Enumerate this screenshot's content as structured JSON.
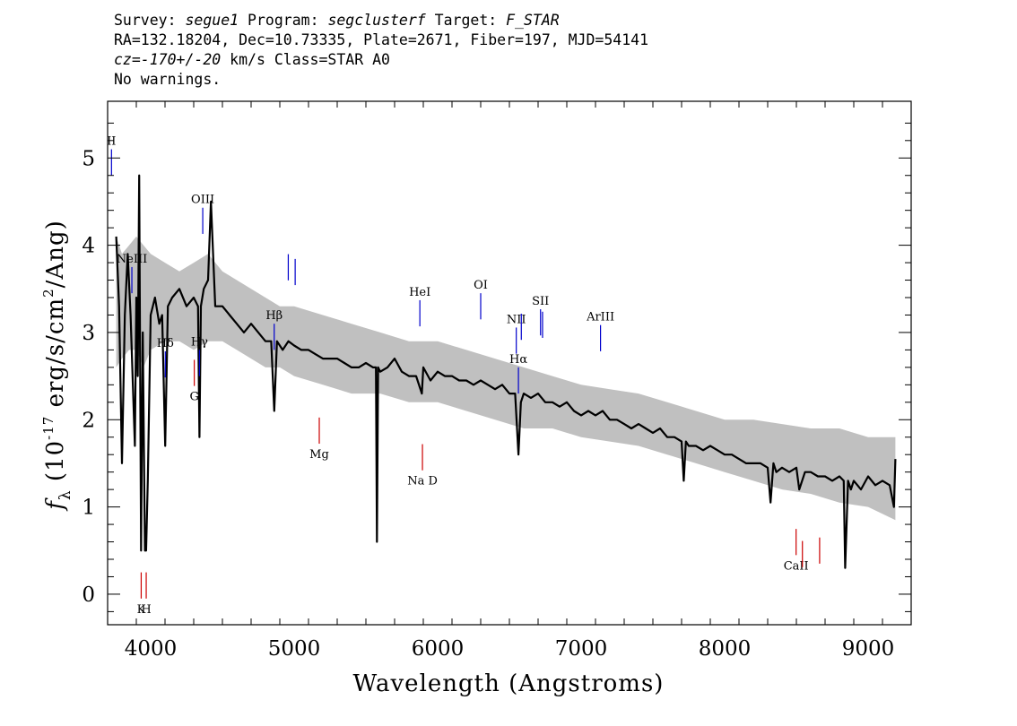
{
  "header": {
    "line1": [
      {
        "text": "Survey: ",
        "italic": false
      },
      {
        "text": "segue1",
        "italic": true
      },
      {
        "text": " Program: ",
        "italic": false
      },
      {
        "text": "segclusterf",
        "italic": true
      },
      {
        "text": " Target: ",
        "italic": false
      },
      {
        "text": "F_STAR",
        "italic": true
      }
    ],
    "line2": "RA=132.18204, Dec=10.73335, Plate=2671, Fiber=197, MJD=54141",
    "line3": [
      {
        "text": "cz=-170+/-20",
        "italic": true
      },
      {
        "text": " km/s Class=STAR A0",
        "italic": false
      }
    ],
    "line4": "No warnings."
  },
  "chart_data": {
    "type": "line",
    "xlabel": "Wavelength (Angstroms)",
    "ylabel_parts": [
      "f",
      "λ",
      " (10",
      "-17",
      " erg/s/cm",
      "2",
      "/Ang)"
    ],
    "xlim": [
      3700,
      9300
    ],
    "ylim": [
      -0.35,
      5.65
    ],
    "x_ticks": [
      4000,
      5000,
      6000,
      7000,
      8000,
      9000
    ],
    "y_ticks": [
      0,
      1,
      2,
      3,
      4,
      5
    ],
    "grid": false,
    "series": [
      {
        "role": "error-band",
        "color": "#c0c0c0",
        "x": [
          3760,
          3800,
          3850,
          3900,
          3950,
          4000,
          4100,
          4200,
          4300,
          4400,
          4500,
          4600,
          4700,
          4800,
          4900,
          5000,
          5200,
          5400,
          5600,
          5800,
          6000,
          6200,
          6400,
          6600,
          6800,
          7000,
          7200,
          7400,
          7600,
          7800,
          8000,
          8200,
          8400,
          8600,
          8800,
          9000,
          9190
        ],
        "lower": [
          2.6,
          2.7,
          2.8,
          2.8,
          2.6,
          2.8,
          2.9,
          2.9,
          2.8,
          2.9,
          2.9,
          2.8,
          2.7,
          2.6,
          2.6,
          2.5,
          2.4,
          2.3,
          2.3,
          2.2,
          2.2,
          2.1,
          2.0,
          1.9,
          1.9,
          1.8,
          1.75,
          1.7,
          1.6,
          1.5,
          1.4,
          1.3,
          1.2,
          1.15,
          1.05,
          1.0,
          0.85
        ],
        "upper": [
          4.1,
          3.9,
          4.0,
          4.1,
          4.0,
          3.9,
          3.8,
          3.7,
          3.8,
          3.9,
          3.7,
          3.6,
          3.5,
          3.4,
          3.3,
          3.3,
          3.2,
          3.1,
          3.0,
          2.9,
          2.9,
          2.8,
          2.7,
          2.6,
          2.5,
          2.4,
          2.35,
          2.3,
          2.2,
          2.1,
          2.0,
          2.0,
          1.95,
          1.9,
          1.9,
          1.8,
          1.8
        ]
      },
      {
        "role": "spectrum",
        "color": "#000000",
        "x": [
          3760,
          3780,
          3800,
          3820,
          3840,
          3860,
          3880,
          3890,
          3900,
          3910,
          3920,
          3933,
          3945,
          3960,
          3968,
          3980,
          4000,
          4030,
          4060,
          4080,
          4101,
          4120,
          4150,
          4200,
          4250,
          4300,
          4330,
          4340,
          4350,
          4370,
          4400,
          4420,
          4450,
          4500,
          4550,
          4600,
          4650,
          4700,
          4750,
          4800,
          4840,
          4861,
          4880,
          4920,
          4960,
          5000,
          5050,
          5100,
          5150,
          5200,
          5250,
          5300,
          5350,
          5400,
          5450,
          5500,
          5550,
          5570,
          5577,
          5585,
          5600,
          5650,
          5700,
          5750,
          5800,
          5850,
          5890,
          5900,
          5950,
          6000,
          6050,
          6100,
          6150,
          6200,
          6250,
          6300,
          6350,
          6400,
          6450,
          6500,
          6540,
          6563,
          6580,
          6600,
          6650,
          6700,
          6750,
          6800,
          6850,
          6900,
          6950,
          7000,
          7050,
          7100,
          7150,
          7200,
          7250,
          7300,
          7350,
          7400,
          7450,
          7500,
          7550,
          7600,
          7650,
          7700,
          7715,
          7730,
          7750,
          7800,
          7850,
          7900,
          7950,
          8000,
          8050,
          8100,
          8150,
          8200,
          8250,
          8300,
          8320,
          8340,
          8360,
          8400,
          8450,
          8500,
          8520,
          8560,
          8600,
          8650,
          8700,
          8750,
          8800,
          8830,
          8840,
          8860,
          8880,
          8900,
          8950,
          9000,
          9050,
          9100,
          9150,
          9180,
          9190
        ],
        "y": [
          4.1,
          3.3,
          1.5,
          3.2,
          3.9,
          3.2,
          2.2,
          1.7,
          3.4,
          2.5,
          4.8,
          0.5,
          3.0,
          0.5,
          0.5,
          1.3,
          3.2,
          3.4,
          3.1,
          3.2,
          1.7,
          3.3,
          3.4,
          3.5,
          3.3,
          3.4,
          3.3,
          1.8,
          3.3,
          3.5,
          3.6,
          4.5,
          3.3,
          3.3,
          3.2,
          3.1,
          3.0,
          3.1,
          3.0,
          2.9,
          2.9,
          2.1,
          2.9,
          2.8,
          2.9,
          2.85,
          2.8,
          2.8,
          2.75,
          2.7,
          2.7,
          2.7,
          2.65,
          2.6,
          2.6,
          2.65,
          2.6,
          2.6,
          0.6,
          2.6,
          2.55,
          2.6,
          2.7,
          2.55,
          2.5,
          2.5,
          2.3,
          2.6,
          2.45,
          2.55,
          2.5,
          2.5,
          2.45,
          2.45,
          2.4,
          2.45,
          2.4,
          2.35,
          2.4,
          2.3,
          2.3,
          1.6,
          2.2,
          2.3,
          2.25,
          2.3,
          2.2,
          2.2,
          2.15,
          2.2,
          2.1,
          2.05,
          2.1,
          2.05,
          2.1,
          2.0,
          2.0,
          1.95,
          1.9,
          1.95,
          1.9,
          1.85,
          1.9,
          1.8,
          1.8,
          1.75,
          1.3,
          1.75,
          1.7,
          1.7,
          1.65,
          1.7,
          1.65,
          1.6,
          1.6,
          1.55,
          1.5,
          1.5,
          1.5,
          1.45,
          1.05,
          1.5,
          1.4,
          1.45,
          1.4,
          1.45,
          1.2,
          1.4,
          1.4,
          1.35,
          1.35,
          1.3,
          1.35,
          1.3,
          0.3,
          1.3,
          1.2,
          1.3,
          1.2,
          1.35,
          1.25,
          1.3,
          1.25,
          1.0,
          1.55
        ]
      }
    ],
    "annotations": [
      {
        "label": "NeIII",
        "x": 3869,
        "color": "blue",
        "type": "emission"
      },
      {
        "label": "II",
        "x": 3727,
        "color": "blue",
        "type": "emission"
      },
      {
        "label": "Hγ",
        "x": 4340,
        "color": "blue",
        "type": "emission"
      },
      {
        "label": "OIII",
        "x": 4363,
        "color": "blue",
        "type": "emission"
      },
      {
        "label": "Hδ",
        "x": 4102,
        "color": "blue",
        "type": "emission"
      },
      {
        "label": "Hβ",
        "x": 4861,
        "color": "blue",
        "type": "emission"
      },
      {
        "label": "OIII",
        "x": 4959,
        "color": "blue",
        "type": "emission"
      },
      {
        "label": "OIII",
        "x": 5007,
        "color": "blue",
        "type": "emission"
      },
      {
        "label": "HeI",
        "x": 5876,
        "color": "blue",
        "type": "emission"
      },
      {
        "label": "OI",
        "x": 6300,
        "color": "blue",
        "type": "emission"
      },
      {
        "label": "NII",
        "x": 6548,
        "color": "blue",
        "type": "emission"
      },
      {
        "label": "Hα",
        "x": 6563,
        "color": "blue",
        "type": "emission"
      },
      {
        "label": "NII",
        "x": 6583,
        "color": "blue",
        "type": "emission"
      },
      {
        "label": "SII",
        "x": 6717,
        "color": "blue",
        "type": "emission"
      },
      {
        "label": "SII",
        "x": 6731,
        "color": "blue",
        "type": "emission"
      },
      {
        "label": "ArIII",
        "x": 7135,
        "color": "blue",
        "type": "emission"
      },
      {
        "label": "K",
        "x": 3934,
        "color": "red",
        "type": "absorption"
      },
      {
        "label": "H",
        "x": 3969,
        "color": "red",
        "type": "absorption"
      },
      {
        "label": "G",
        "x": 4304,
        "color": "red",
        "type": "absorption"
      },
      {
        "label": "Mg",
        "x": 5175,
        "color": "red",
        "type": "absorption"
      },
      {
        "label": "Na D",
        "x": 5894,
        "color": "red",
        "type": "absorption"
      },
      {
        "label": "CaII",
        "x": 8498,
        "color": "red",
        "type": "absorption"
      },
      {
        "label": "CaII",
        "x": 8542,
        "color": "red",
        "type": "absorption"
      },
      {
        "label": "CaII",
        "x": 8662,
        "color": "red",
        "type": "absorption"
      }
    ]
  }
}
